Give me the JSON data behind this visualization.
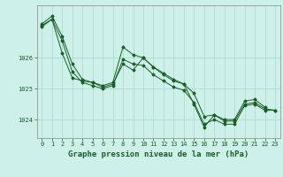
{
  "title": "Graphe pression niveau de la mer (hPa)",
  "background_color": "#cdf0e8",
  "grid_color": "#a8d8c8",
  "line_color": "#1a5c2a",
  "spine_color": "#888888",
  "ylim": [
    1023.4,
    1027.7
  ],
  "yticks": [
    1024,
    1025,
    1026
  ],
  "xlim": [
    -0.5,
    23.5
  ],
  "xticks": [
    0,
    1,
    2,
    3,
    4,
    5,
    6,
    7,
    8,
    9,
    10,
    11,
    12,
    13,
    14,
    15,
    16,
    17,
    18,
    19,
    20,
    21,
    22,
    23
  ],
  "tick_fontsize": 5.0,
  "label_fontsize": 6.5,
  "s1_x": [
    0,
    1,
    2,
    3,
    4,
    5,
    6,
    7,
    8,
    9,
    10,
    11,
    12,
    13,
    14,
    15,
    16,
    17,
    18,
    19,
    20,
    21,
    22
  ],
  "s1_y": [
    1027.1,
    1027.35,
    1026.7,
    1025.8,
    1025.3,
    1025.2,
    1025.1,
    1025.2,
    1026.35,
    1026.1,
    1026.0,
    1025.7,
    1025.5,
    1025.3,
    1025.15,
    1024.85,
    1024.1,
    1024.15,
    1024.0,
    1024.0,
    1024.6,
    1024.65,
    1024.4
  ],
  "s2_x": [
    0,
    1,
    2,
    3,
    4,
    5,
    6,
    7,
    8,
    9,
    10,
    11,
    12,
    13,
    14,
    15,
    16,
    17,
    18,
    19,
    20,
    21,
    22,
    23
  ],
  "s2_y": [
    1027.05,
    1027.25,
    1026.55,
    1025.55,
    1025.2,
    1025.1,
    1025.0,
    1025.1,
    1025.95,
    1025.8,
    1025.75,
    1025.45,
    1025.25,
    1025.05,
    1024.95,
    1024.55,
    1023.85,
    1024.0,
    1023.85,
    1023.85,
    1024.45,
    1024.5,
    1024.3,
    1024.3
  ],
  "s3_x": [
    0,
    1,
    2,
    3,
    4,
    5,
    6,
    7,
    8,
    9,
    10,
    11,
    12,
    13,
    14,
    15,
    16,
    17,
    18,
    19,
    20,
    21,
    22,
    23
  ],
  "s3_y": [
    1027.0,
    1027.25,
    1026.15,
    1025.35,
    1025.25,
    1025.2,
    1025.05,
    1025.15,
    1025.8,
    1025.6,
    1026.0,
    1025.7,
    1025.45,
    1025.25,
    1025.15,
    1024.5,
    1023.75,
    1024.15,
    1023.95,
    1023.95,
    1024.5,
    1024.55,
    1024.35,
    1024.3
  ]
}
